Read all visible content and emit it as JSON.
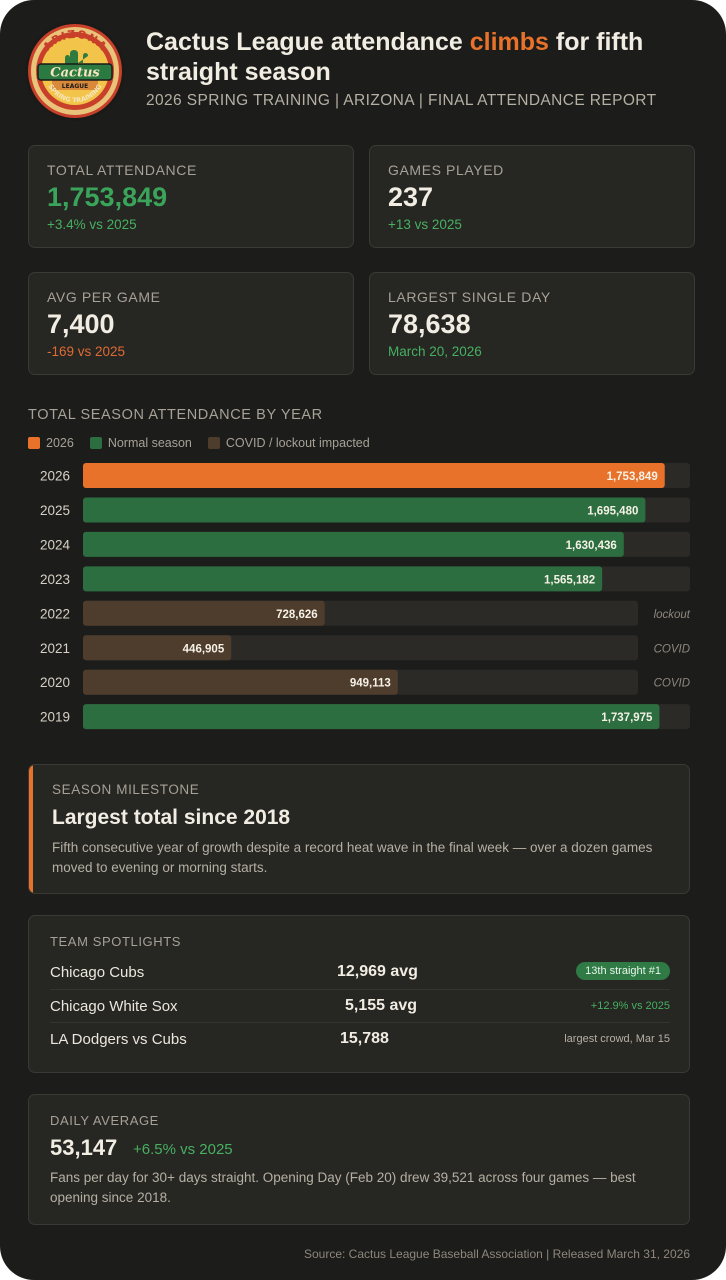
{
  "header": {
    "title_part1": "Cactus League attendance ",
    "title_highlight": "climbs",
    "title_part2": " for fifth straight season",
    "subtitle": "2026 SPRING TRAINING  |  ARIZONA  |  FINAL ATTENDANCE REPORT"
  },
  "logo": {
    "top_text": "ARIZONA",
    "script_text": "Cactus",
    "band_text": "LEAGUE",
    "bottom_text": "SPRING TRAINING"
  },
  "stats": [
    {
      "label": "TOTAL ATTENDANCE",
      "value": "1,753,849",
      "delta": "+3.4% vs 2025"
    },
    {
      "label": "GAMES PLAYED",
      "value": "237",
      "delta": "+13 vs 2025"
    },
    {
      "label": "AVG PER GAME",
      "value": "7,400",
      "delta": "-169 vs 2025"
    },
    {
      "label": "LARGEST SINGLE DAY",
      "value": "78,638",
      "delta": "March 20, 2026"
    }
  ],
  "chart_data": {
    "type": "bar",
    "orientation": "horizontal",
    "title": "TOTAL SEASON ATTENDANCE BY YEAR",
    "legend": [
      "2026",
      "Normal season",
      "COVID / lockout impacted"
    ],
    "categories": [
      "2026",
      "2025",
      "2024",
      "2023",
      "2022",
      "2021",
      "2020",
      "2019"
    ],
    "values": [
      1753849,
      1695480,
      1630436,
      1565182,
      728626,
      446905,
      949113,
      1737975
    ],
    "value_labels": [
      "1,753,849",
      "1,695,480",
      "1,630,436",
      "1,565,182",
      "728,626",
      "446,905",
      "949,113",
      "1,737,975"
    ],
    "kinds": [
      "current",
      "normal",
      "normal",
      "normal",
      "impacted",
      "impacted",
      "impacted",
      "normal"
    ],
    "notes": [
      "",
      "",
      "",
      "",
      "lockout",
      "COVID",
      "COVID",
      ""
    ],
    "xlim": [
      0,
      1830000
    ],
    "colors": {
      "current": "#e8722a",
      "normal": "#2c6e3f",
      "impacted": "#4e3d2d",
      "track": "#2b2a27"
    }
  },
  "milestone": {
    "label": "SEASON MILESTONE",
    "headline": "Largest total since 2018",
    "body": "Fifth consecutive year of growth despite a record heat wave in the final week  —  over a dozen games moved to evening or morning starts."
  },
  "spotlights": {
    "label": "TEAM SPOTLIGHTS",
    "rows": [
      {
        "name": "Chicago Cubs",
        "value": "12,969 avg",
        "note": "13th straight #1"
      },
      {
        "name": "Chicago White Sox",
        "value": "5,155 avg",
        "note": "+12.9% vs 2025"
      },
      {
        "name": "LA Dodgers vs Cubs",
        "value": "15,788",
        "note": "largest crowd, Mar 15"
      }
    ]
  },
  "daily": {
    "label": "DAILY AVERAGE",
    "value": "53,147",
    "delta": "+6.5% vs 2025",
    "body": "Fans per day for 30+ days straight. Opening Day (Feb 20) drew 39,521 across four games  —  best opening since 2018."
  },
  "footer": {
    "text": "Source: Cactus League Baseball Association  |  Released March 31, 2026"
  }
}
